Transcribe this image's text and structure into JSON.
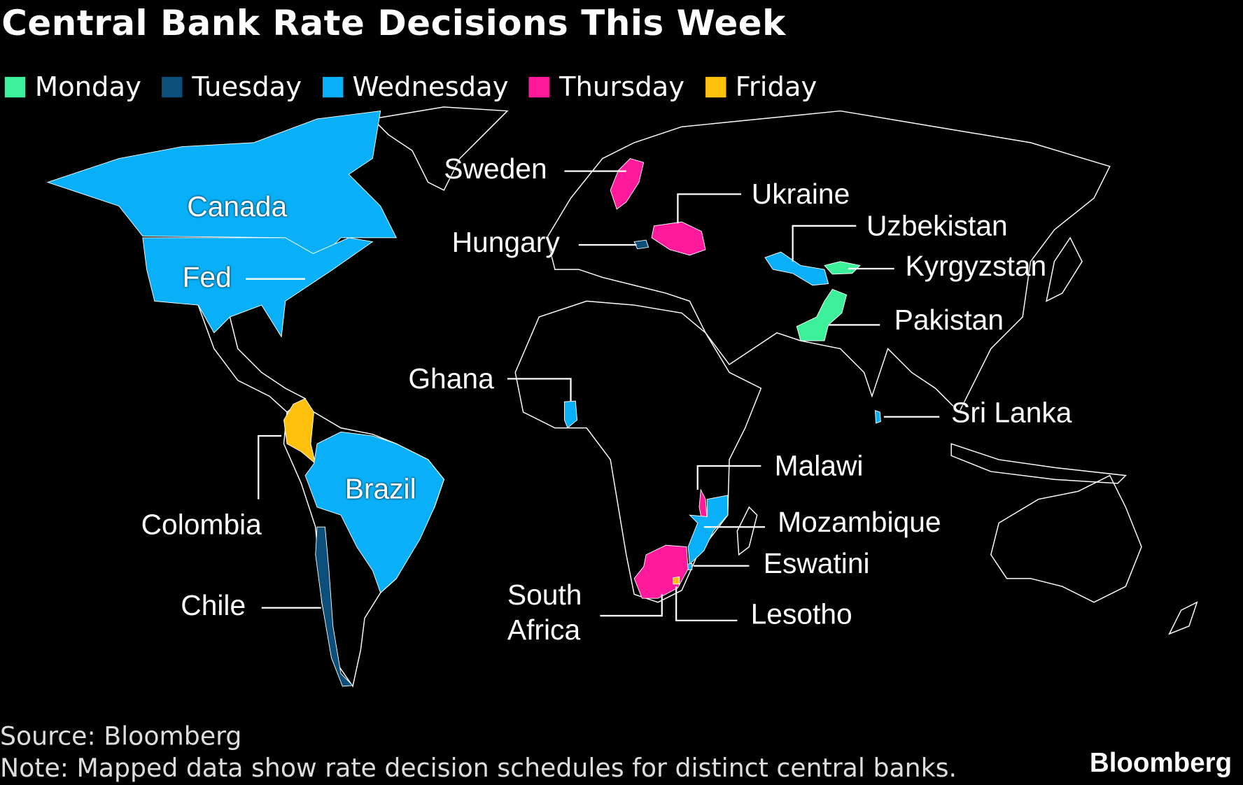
{
  "title": "Central Bank Rate Decisions This Week",
  "legend": [
    {
      "label": "Monday",
      "color": "#3cf09a"
    },
    {
      "label": "Tuesday",
      "color": "#0b4f7a"
    },
    {
      "label": "Wednesday",
      "color": "#0ab0f7"
    },
    {
      "label": "Thursday",
      "color": "#ff1a9c"
    },
    {
      "label": "Friday",
      "color": "#ffc10e"
    }
  ],
  "countries": [
    {
      "label": "Canada",
      "color": "#0ab0f7"
    },
    {
      "label": "Fed",
      "color": "#0ab0f7"
    },
    {
      "label": "Colombia",
      "color": "#ffc10e"
    },
    {
      "label": "Brazil",
      "color": "#0ab0f7"
    },
    {
      "label": "Chile",
      "color": "#0b4f7a"
    },
    {
      "label": "Sweden",
      "color": "#ff1a9c"
    },
    {
      "label": "Ukraine",
      "color": "#ff1a9c"
    },
    {
      "label": "Hungary",
      "color": "#0b4f7a"
    },
    {
      "label": "Uzbekistan",
      "color": "#0ab0f7"
    },
    {
      "label": "Kyrgyzstan",
      "color": "#3cf09a"
    },
    {
      "label": "Pakistan",
      "color": "#3cf09a"
    },
    {
      "label": "Ghana",
      "color": "#0ab0f7"
    },
    {
      "label": "Sri Lanka",
      "color": "#0ab0f7"
    },
    {
      "label": "Malawi",
      "color": "#ff1a9c"
    },
    {
      "label": "Mozambique",
      "color": "#0ab0f7"
    },
    {
      "label": "Eswatini",
      "color": "#0ab0f7"
    },
    {
      "label": "South Africa",
      "color": "#ff1a9c"
    },
    {
      "label": "Lesotho",
      "color": "#ffc10e"
    }
  ],
  "source": "Source: Bloomberg",
  "note": "Note: Mapped data show rate decision schedules for distinct central banks.",
  "logo": "Bloomberg"
}
